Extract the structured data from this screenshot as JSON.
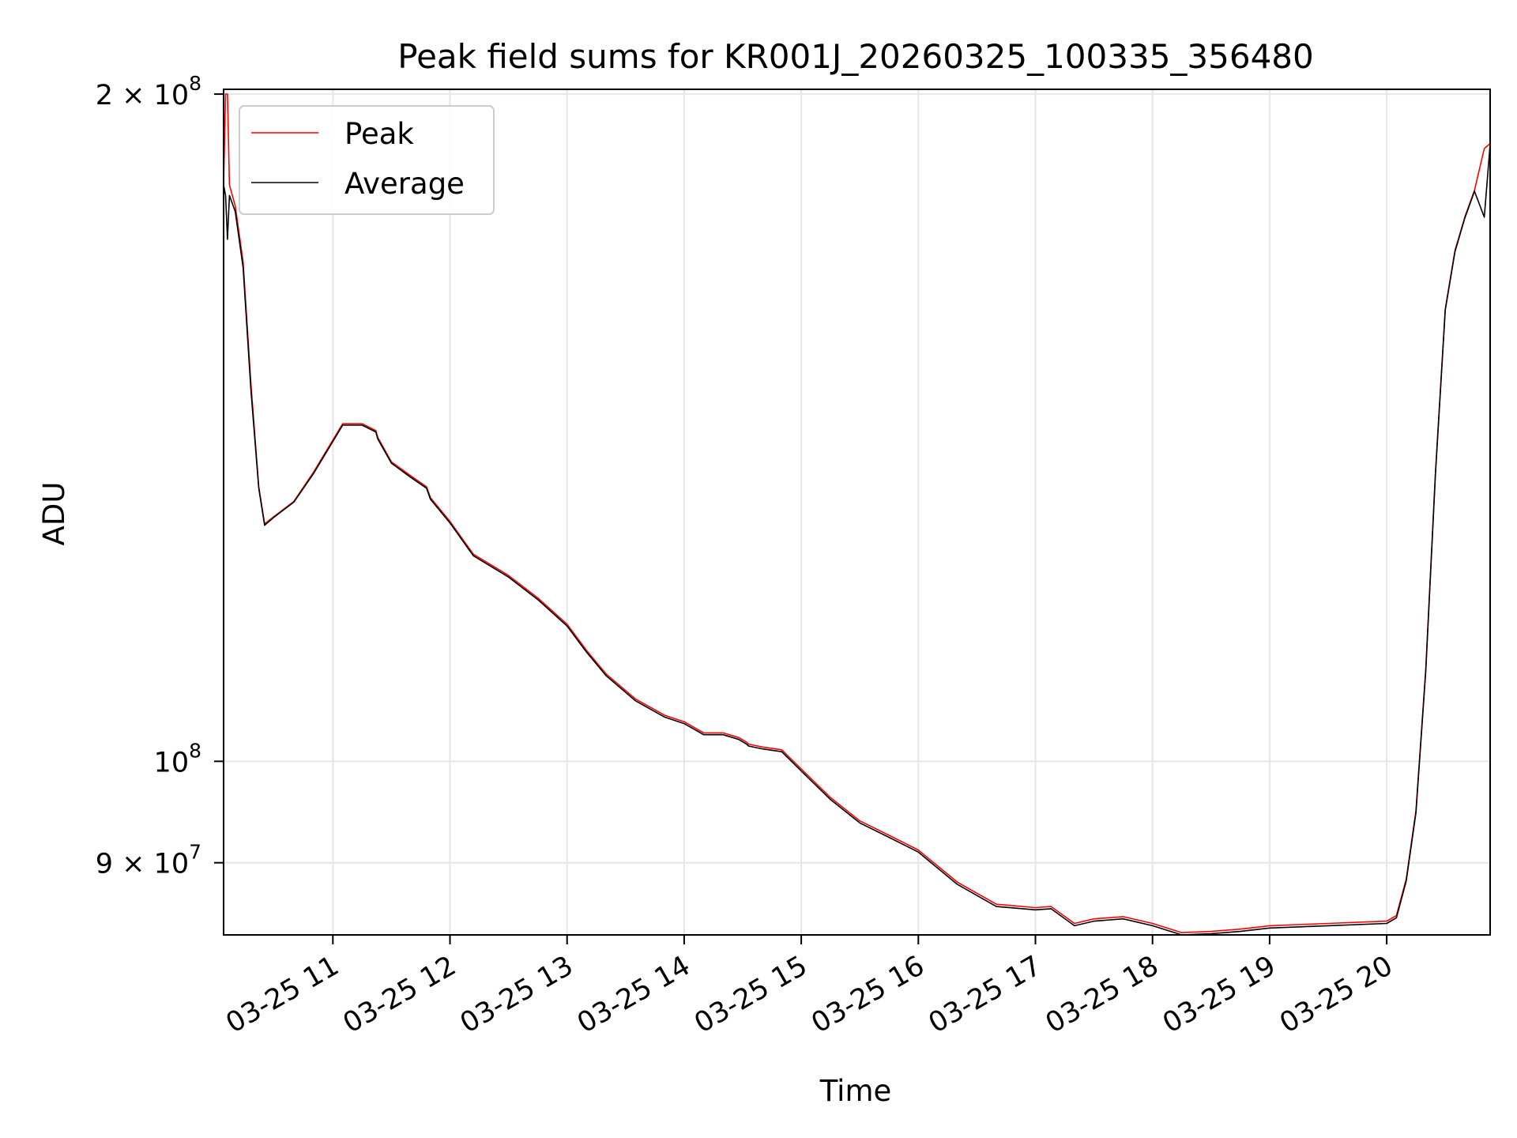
{
  "chart_data": {
    "type": "line",
    "title": "Peak field sums for KR001J_20260325_100335_356480",
    "xlabel": "Time",
    "ylabel": "ADU",
    "yscale": "log",
    "ylim": [
      83500000,
      201000000
    ],
    "xlim": [
      "2026-03-25 10:04",
      "2026-03-25 20:53"
    ],
    "x_ticks": [
      {
        "value": "2026-03-25 11:00",
        "label": "03-25 11"
      },
      {
        "value": "2026-03-25 12:00",
        "label": "03-25 12"
      },
      {
        "value": "2026-03-25 13:00",
        "label": "03-25 13"
      },
      {
        "value": "2026-03-25 14:00",
        "label": "03-25 14"
      },
      {
        "value": "2026-03-25 15:00",
        "label": "03-25 15"
      },
      {
        "value": "2026-03-25 16:00",
        "label": "03-25 16"
      },
      {
        "value": "2026-03-25 17:00",
        "label": "03-25 17"
      },
      {
        "value": "2026-03-25 18:00",
        "label": "03-25 18"
      },
      {
        "value": "2026-03-25 19:00",
        "label": "03-25 19"
      },
      {
        "value": "2026-03-25 20:00",
        "label": "03-25 20"
      }
    ],
    "y_ticks": [
      {
        "value": 200000000,
        "base": "2 × 10",
        "exp": "8"
      },
      {
        "value": 100000000,
        "base": "10",
        "exp": "8"
      },
      {
        "value": 90000000,
        "base": "9 × 10",
        "exp": "7"
      }
    ],
    "grid": true,
    "legend_position": "top-left",
    "series": [
      {
        "name": "Peak",
        "color": "#ff0000",
        "x": [
          "2026-03-25 10:04",
          "2026-03-25 10:05",
          "2026-03-25 10:06",
          "2026-03-25 10:07",
          "2026-03-25 10:10",
          "2026-03-25 10:14",
          "2026-03-25 10:18",
          "2026-03-25 10:22",
          "2026-03-25 10:25",
          "2026-03-25 10:30",
          "2026-03-25 10:40",
          "2026-03-25 10:50",
          "2026-03-25 11:05",
          "2026-03-25 11:15",
          "2026-03-25 11:22",
          "2026-03-25 11:23",
          "2026-03-25 11:30",
          "2026-03-25 11:40",
          "2026-03-25 11:48",
          "2026-03-25 11:50",
          "2026-03-25 12:00",
          "2026-03-25 12:10",
          "2026-03-25 12:12",
          "2026-03-25 12:30",
          "2026-03-25 12:45",
          "2026-03-25 13:00",
          "2026-03-25 13:10",
          "2026-03-25 13:20",
          "2026-03-25 13:35",
          "2026-03-25 13:50",
          "2026-03-25 14:00",
          "2026-03-25 14:10",
          "2026-03-25 14:20",
          "2026-03-25 14:28",
          "2026-03-25 14:32",
          "2026-03-25 14:33",
          "2026-03-25 14:40",
          "2026-03-25 14:50",
          "2026-03-25 15:00",
          "2026-03-25 15:15",
          "2026-03-25 15:30",
          "2026-03-25 15:45",
          "2026-03-25 16:00",
          "2026-03-25 16:20",
          "2026-03-25 16:40",
          "2026-03-25 17:00",
          "2026-03-25 17:08",
          "2026-03-25 17:20",
          "2026-03-25 17:30",
          "2026-03-25 17:45",
          "2026-03-25 18:00",
          "2026-03-25 18:15",
          "2026-03-25 18:30",
          "2026-03-25 18:45",
          "2026-03-25 19:00",
          "2026-03-25 19:30",
          "2026-03-25 20:00",
          "2026-03-25 20:05",
          "2026-03-25 20:10",
          "2026-03-25 20:15",
          "2026-03-25 20:20",
          "2026-03-25 20:25",
          "2026-03-25 20:30",
          "2026-03-25 20:35",
          "2026-03-25 20:40",
          "2026-03-25 20:45",
          "2026-03-25 20:50",
          "2026-03-25 20:53"
        ],
        "y": [
          182000000,
          200000000,
          200000000,
          182000000,
          178000000,
          168000000,
          148000000,
          133000000,
          128000000,
          129000000,
          131000000,
          135000000,
          142000000,
          142000000,
          141000000,
          140000000,
          136500000,
          134500000,
          133000000,
          131500000,
          128300000,
          124700000,
          124000000,
          121300000,
          118500000,
          115300000,
          112200000,
          109500000,
          106700000,
          104900000,
          104200000,
          103000000,
          103000000,
          102500000,
          102000000,
          101800000,
          101500000,
          101200000,
          99200000,
          96300000,
          94000000,
          92600000,
          91200000,
          88200000,
          86200000,
          85900000,
          86000000,
          84500000,
          84900000,
          85100000,
          84500000,
          83700000,
          83800000,
          84000000,
          84300000,
          84500000,
          84700000,
          85200000,
          88500000,
          95000000,
          110000000,
          135000000,
          160000000,
          170000000,
          176000000,
          181000000,
          189000000,
          190000000
        ]
      },
      {
        "name": "Average",
        "color": "#000000",
        "x": [
          "2026-03-25 10:04",
          "2026-03-25 10:05",
          "2026-03-25 10:06",
          "2026-03-25 10:07",
          "2026-03-25 10:10",
          "2026-03-25 10:14",
          "2026-03-25 10:18",
          "2026-03-25 10:22",
          "2026-03-25 10:25",
          "2026-03-25 10:30",
          "2026-03-25 10:40",
          "2026-03-25 10:50",
          "2026-03-25 11:05",
          "2026-03-25 11:15",
          "2026-03-25 11:22",
          "2026-03-25 11:23",
          "2026-03-25 11:30",
          "2026-03-25 11:40",
          "2026-03-25 11:48",
          "2026-03-25 11:50",
          "2026-03-25 12:00",
          "2026-03-25 12:10",
          "2026-03-25 12:12",
          "2026-03-25 12:30",
          "2026-03-25 12:45",
          "2026-03-25 13:00",
          "2026-03-25 13:10",
          "2026-03-25 13:20",
          "2026-03-25 13:35",
          "2026-03-25 13:50",
          "2026-03-25 14:00",
          "2026-03-25 14:10",
          "2026-03-25 14:20",
          "2026-03-25 14:28",
          "2026-03-25 14:32",
          "2026-03-25 14:33",
          "2026-03-25 14:40",
          "2026-03-25 14:50",
          "2026-03-25 15:00",
          "2026-03-25 15:15",
          "2026-03-25 15:30",
          "2026-03-25 15:45",
          "2026-03-25 16:00",
          "2026-03-25 16:20",
          "2026-03-25 16:40",
          "2026-03-25 17:00",
          "2026-03-25 17:08",
          "2026-03-25 17:20",
          "2026-03-25 17:30",
          "2026-03-25 17:45",
          "2026-03-25 18:00",
          "2026-03-25 18:15",
          "2026-03-25 18:30",
          "2026-03-25 18:45",
          "2026-03-25 19:00",
          "2026-03-25 19:30",
          "2026-03-25 20:00",
          "2026-03-25 20:05",
          "2026-03-25 20:10",
          "2026-03-25 20:15",
          "2026-03-25 20:20",
          "2026-03-25 20:25",
          "2026-03-25 20:30",
          "2026-03-25 20:35",
          "2026-03-25 20:40",
          "2026-03-25 20:45",
          "2026-03-25 20:50",
          "2026-03-25 20:53"
        ],
        "y": [
          182000000,
          180000000,
          172000000,
          180000000,
          177000000,
          167000000,
          147000000,
          132800000,
          127800000,
          128900000,
          130900000,
          134800000,
          141800000,
          141800000,
          140800000,
          139800000,
          136300000,
          134300000,
          132800000,
          131300000,
          128100000,
          124500000,
          123800000,
          121100000,
          118300000,
          115100000,
          112000000,
          109300000,
          106500000,
          104700000,
          104000000,
          102800000,
          102800000,
          102300000,
          101800000,
          101600000,
          101300000,
          101000000,
          99000000,
          96100000,
          93800000,
          92400000,
          91000000,
          88000000,
          86000000,
          85700000,
          85800000,
          84300000,
          84700000,
          84900000,
          84300000,
          83500000,
          83600000,
          83800000,
          84100000,
          84300000,
          84500000,
          85000000,
          88300000,
          94800000,
          109800000,
          134800000,
          159800000,
          169800000,
          175800000,
          180800000,
          176000000,
          189800000
        ]
      }
    ]
  }
}
